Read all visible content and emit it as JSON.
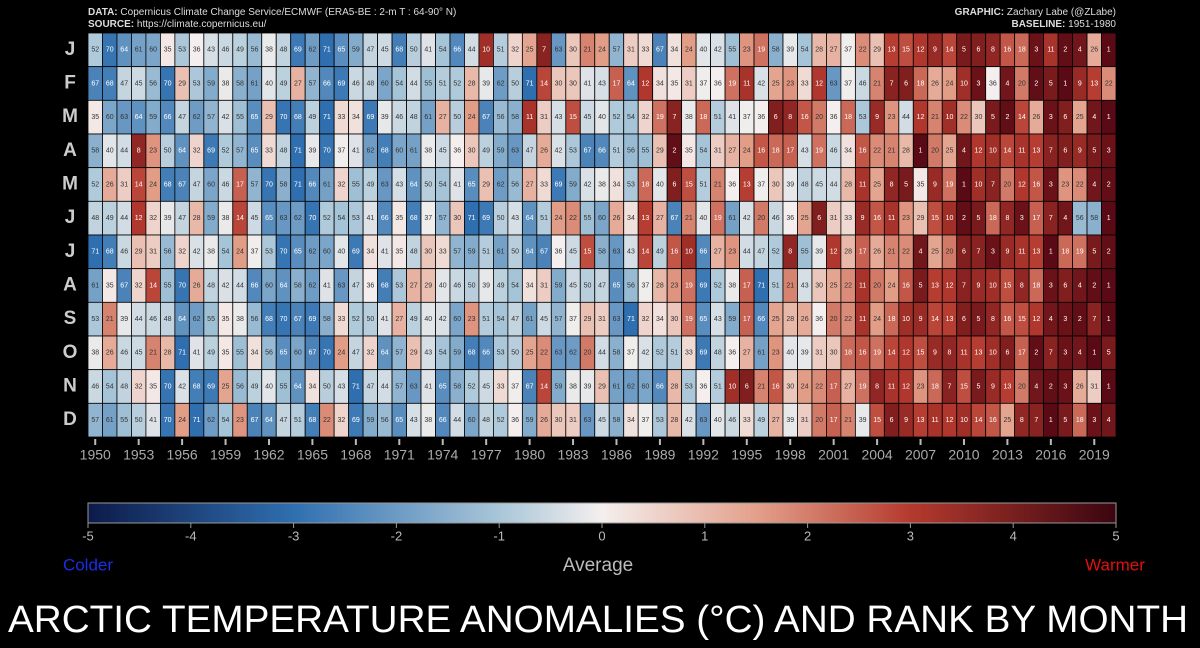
{
  "chart_data": {
    "type": "heatmap",
    "title": "ARCTIC TEMPERATURE ANOMALIES (°C) AND RANK BY MONTH",
    "data_label": "DATA:",
    "data_text": "Copernicus Climate Change Service/ECMWF (ERA5-BE : 2-m T : 64-90° N)",
    "source_label": "SOURCE:",
    "source_text": "https://climate.copernicus.eu/",
    "graphic_label": "GRAPHIC:",
    "graphic_text": "Zachary Labe (@ZLabe)",
    "baseline_label": "BASELINE:",
    "baseline_text": "1951-1980",
    "xlim": [
      1950,
      2020
    ],
    "xticks": [
      1950,
      1953,
      1956,
      1959,
      1962,
      1965,
      1968,
      1971,
      1974,
      1977,
      1980,
      1983,
      1986,
      1989,
      1992,
      1995,
      1998,
      2001,
      2004,
      2007,
      2010,
      2013,
      2016,
      2019
    ],
    "clim": [
      -5,
      5
    ],
    "cticks": [
      -5,
      -4,
      -3,
      -2,
      -1,
      0,
      1,
      2,
      3,
      4,
      5
    ],
    "colorbar_labels": {
      "cold": "Colder",
      "mid": "Average",
      "warm": "Warmer"
    },
    "series": [
      {
        "name": "J",
        "values": [
          52,
          70,
          64,
          61,
          60,
          35,
          53,
          36,
          43,
          46,
          49,
          56,
          38,
          48,
          69,
          62,
          71,
          65,
          59,
          47,
          45,
          68,
          50,
          41,
          54,
          66,
          44,
          10,
          51,
          32,
          25,
          7,
          63,
          30,
          21,
          24,
          57,
          31,
          33,
          67,
          34,
          24,
          40,
          42,
          55,
          23,
          19,
          58,
          39,
          54,
          28,
          27,
          37,
          22,
          29,
          13,
          15,
          12,
          9,
          14,
          5,
          6,
          8,
          16,
          18,
          3,
          11,
          2,
          4,
          26,
          1
        ]
      },
      {
        "name": "F",
        "values": [
          67,
          68,
          47,
          45,
          56,
          70,
          29,
          53,
          59,
          38,
          58,
          61,
          40,
          49,
          27,
          57,
          66,
          69,
          46,
          48,
          60,
          54,
          44,
          55,
          51,
          52,
          28,
          39,
          62,
          50,
          71,
          14,
          30,
          30,
          41,
          43,
          17,
          64,
          12,
          34,
          35,
          31,
          37,
          36,
          19,
          11,
          42,
          25,
          23,
          33,
          12,
          63,
          37,
          46,
          21,
          7,
          6,
          18,
          26,
          24,
          10,
          3,
          36,
          4,
          20,
          2,
          5,
          1,
          9,
          13,
          22
        ]
      },
      {
        "name": "M",
        "values": [
          35,
          60,
          63,
          64,
          59,
          66,
          47,
          62,
          57,
          42,
          55,
          65,
          29,
          70,
          68,
          49,
          71,
          33,
          34,
          69,
          39,
          46,
          48,
          61,
          27,
          50,
          24,
          67,
          56,
          58,
          11,
          31,
          43,
          15,
          45,
          40,
          52,
          54,
          32,
          19,
          7,
          38,
          18,
          51,
          41,
          37,
          36,
          6,
          8,
          16,
          20,
          36,
          18,
          53,
          9,
          23,
          44,
          12,
          21,
          10,
          22,
          30,
          5,
          2,
          14,
          26,
          3,
          6,
          25,
          4,
          1
        ]
      },
      {
        "name": "A",
        "values": [
          58,
          40,
          44,
          8,
          23,
          50,
          64,
          32,
          69,
          52,
          57,
          65,
          33,
          48,
          71,
          39,
          70,
          37,
          41,
          62,
          68,
          60,
          61,
          38,
          45,
          36,
          30,
          49,
          59,
          63,
          47,
          26,
          42,
          53,
          67,
          66,
          51,
          56,
          55,
          29,
          2,
          35,
          54,
          31,
          27,
          24,
          16,
          18,
          17,
          43,
          19,
          46,
          34,
          16,
          22,
          21,
          28,
          1,
          20,
          25,
          4,
          12,
          10,
          14,
          11,
          13,
          7,
          6,
          9,
          5,
          3
        ]
      },
      {
        "name": "M",
        "values": [
          52,
          26,
          31,
          14,
          24,
          68,
          67,
          47,
          60,
          46,
          17,
          57,
          70,
          58,
          71,
          66,
          61,
          32,
          55,
          49,
          63,
          43,
          64,
          50,
          54,
          41,
          65,
          29,
          62,
          56,
          27,
          33,
          69,
          59,
          42,
          38,
          34,
          53,
          18,
          40,
          6,
          15,
          51,
          21,
          36,
          13,
          37,
          30,
          39,
          48,
          45,
          44,
          28,
          11,
          25,
          8,
          5,
          35,
          9,
          19,
          1,
          10,
          7,
          20,
          12,
          16,
          3,
          23,
          22,
          4,
          2
        ]
      },
      {
        "name": "J",
        "values": [
          48,
          49,
          44,
          12,
          32,
          39,
          47,
          28,
          59,
          38,
          14,
          45,
          65,
          63,
          62,
          70,
          52,
          54,
          53,
          41,
          66,
          35,
          68,
          37,
          57,
          30,
          71,
          69,
          50,
          43,
          64,
          51,
          24,
          22,
          55,
          60,
          26,
          34,
          13,
          27,
          67,
          21,
          40,
          19,
          61,
          42,
          20,
          46,
          36,
          25,
          6,
          31,
          33,
          9,
          16,
          11,
          23,
          29,
          15,
          10,
          2,
          5,
          18,
          8,
          3,
          17,
          7,
          4,
          56,
          58,
          1
        ]
      },
      {
        "name": "J",
        "values": [
          71,
          68,
          46,
          29,
          31,
          56,
          32,
          42,
          38,
          54,
          24,
          37,
          53,
          70,
          65,
          62,
          60,
          40,
          69,
          34,
          41,
          35,
          48,
          30,
          33,
          57,
          59,
          51,
          61,
          50,
          64,
          67,
          36,
          45,
          15,
          58,
          63,
          43,
          14,
          49,
          16,
          10,
          66,
          27,
          23,
          44,
          47,
          52,
          8,
          55,
          39,
          12,
          28,
          17,
          26,
          21,
          22,
          4,
          25,
          20,
          6,
          7,
          3,
          9,
          11,
          13,
          1,
          18,
          19,
          5,
          2
        ]
      },
      {
        "name": "A",
        "values": [
          61,
          35,
          67,
          32,
          14,
          55,
          70,
          26,
          48,
          42,
          44,
          66,
          60,
          64,
          58,
          62,
          41,
          63,
          47,
          36,
          68,
          53,
          27,
          29,
          40,
          46,
          50,
          39,
          49,
          54,
          34,
          31,
          59,
          45,
          50,
          47,
          65,
          56,
          37,
          28,
          23,
          19,
          69,
          52,
          38,
          17,
          71,
          51,
          21,
          43,
          30,
          25,
          22,
          11,
          20,
          24,
          16,
          5,
          13,
          12,
          7,
          9,
          10,
          15,
          8,
          18,
          3,
          6,
          4,
          2,
          1
        ]
      },
      {
        "name": "S",
        "values": [
          53,
          21,
          39,
          44,
          46,
          48,
          64,
          62,
          55,
          35,
          38,
          56,
          68,
          70,
          67,
          69,
          58,
          33,
          52,
          50,
          41,
          27,
          49,
          40,
          42,
          60,
          23,
          51,
          54,
          47,
          61,
          45,
          57,
          37,
          29,
          31,
          63,
          71,
          32,
          34,
          30,
          19,
          65,
          43,
          59,
          17,
          66,
          25,
          28,
          26,
          36,
          20,
          22,
          11,
          24,
          18,
          10,
          9,
          14,
          13,
          6,
          5,
          8,
          16,
          15,
          12,
          4,
          3,
          2,
          7,
          1
        ]
      },
      {
        "name": "O",
        "values": [
          38,
          26,
          46,
          45,
          21,
          28,
          71,
          41,
          49,
          35,
          55,
          34,
          56,
          65,
          60,
          67,
          70,
          24,
          47,
          32,
          64,
          57,
          29,
          43,
          54,
          59,
          68,
          66,
          53,
          50,
          25,
          22,
          63,
          62,
          20,
          44,
          58,
          37,
          42,
          52,
          51,
          33,
          69,
          48,
          36,
          27,
          61,
          23,
          40,
          39,
          31,
          30,
          18,
          16,
          19,
          14,
          12,
          15,
          9,
          8,
          11,
          13,
          10,
          6,
          17,
          2,
          7,
          3,
          4,
          1,
          5
        ]
      },
      {
        "name": "N",
        "values": [
          46,
          54,
          48,
          32,
          35,
          70,
          42,
          68,
          69,
          25,
          56,
          49,
          40,
          55,
          64,
          34,
          50,
          43,
          71,
          47,
          44,
          57,
          63,
          41,
          65,
          58,
          52,
          45,
          33,
          37,
          67,
          14,
          59,
          38,
          39,
          29,
          61,
          62,
          60,
          66,
          28,
          53,
          36,
          51,
          10,
          6,
          21,
          16,
          30,
          24,
          22,
          17,
          27,
          19,
          8,
          11,
          12,
          23,
          18,
          7,
          15,
          5,
          9,
          13,
          20,
          4,
          2,
          3,
          26,
          31,
          1
        ]
      },
      {
        "name": "D",
        "values": [
          57,
          61,
          55,
          50,
          41,
          70,
          24,
          71,
          62,
          54,
          23,
          67,
          64,
          47,
          51,
          68,
          22,
          32,
          69,
          59,
          56,
          65,
          43,
          38,
          66,
          44,
          60,
          48,
          52,
          36,
          59,
          26,
          30,
          31,
          63,
          45,
          58,
          34,
          37,
          53,
          28,
          42,
          63,
          40,
          46,
          33,
          49,
          27,
          39,
          31,
          20,
          17,
          21,
          39,
          15,
          6,
          9,
          13,
          11,
          12,
          10,
          14,
          16,
          25,
          8,
          7,
          1,
          5,
          18,
          3,
          4
        ]
      }
    ]
  }
}
